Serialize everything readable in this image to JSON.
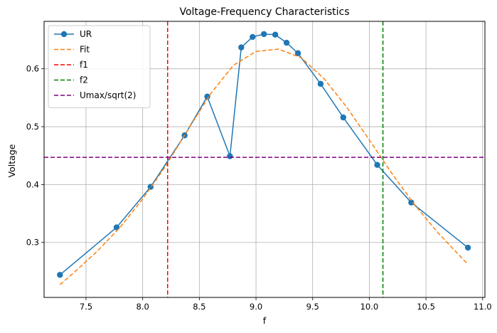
{
  "chart_data": {
    "type": "line",
    "title": "Voltage-Frequency Characteristics",
    "xlabel": "f",
    "ylabel": "Voltage",
    "xlim": [
      7.13,
      11.02
    ],
    "ylim": [
      0.205,
      0.682
    ],
    "xticks": [
      "7.5",
      "8.0",
      "8.5",
      "9.0",
      "9.5",
      "10.0",
      "10.5",
      "11.0"
    ],
    "yticks": [
      "0.3",
      "0.4",
      "0.5",
      "0.6"
    ],
    "grid": true,
    "legend_position": "top-left",
    "series": [
      {
        "name": "UR",
        "style": "line-marker",
        "color": "#1f77b4",
        "x": [
          7.27,
          7.77,
          8.07,
          8.37,
          8.57,
          8.77,
          8.87,
          8.97,
          9.07,
          9.17,
          9.27,
          9.37,
          9.57,
          9.77,
          10.07,
          10.37,
          10.87
        ],
        "y": [
          0.244,
          0.326,
          0.396,
          0.485,
          0.552,
          0.449,
          0.637,
          0.655,
          0.66,
          0.659,
          0.645,
          0.627,
          0.574,
          0.516,
          0.434,
          0.369,
          0.291
        ]
      },
      {
        "name": "Fit",
        "style": "dashed",
        "color": "#ff7f0e",
        "x": [
          7.27,
          7.4,
          7.6,
          7.8,
          8.0,
          8.2,
          8.4,
          8.6,
          8.8,
          9.0,
          9.2,
          9.4,
          9.6,
          9.8,
          10.0,
          10.2,
          10.4,
          10.6,
          10.87
        ],
        "y": [
          0.227,
          0.249,
          0.285,
          0.326,
          0.375,
          0.431,
          0.495,
          0.557,
          0.606,
          0.63,
          0.634,
          0.619,
          0.583,
          0.534,
          0.477,
          0.419,
          0.365,
          0.318,
          0.262
        ]
      },
      {
        "name": "f1",
        "style": "vline",
        "color": "#ff0000",
        "x": 8.22
      },
      {
        "name": "f2",
        "style": "vline",
        "color": "#008000",
        "x": 10.12
      },
      {
        "name": "Umax/sqrt(2)",
        "style": "hline",
        "color": "#800080",
        "y": 0.447
      }
    ]
  }
}
